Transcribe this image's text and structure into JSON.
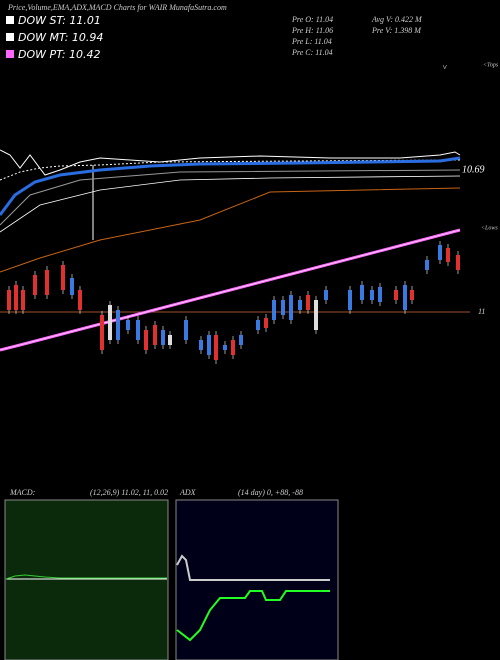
{
  "chart_data": {
    "type": "candlestick",
    "title": "Price,Volume,EMA,ADX,MACD Charts for WAIR MunafaSutra.com",
    "series": [
      {
        "name": "DOW ST: 11.01",
        "color": "#ffffff"
      },
      {
        "name": "DOW MT: 10.94",
        "color": "#ffffff"
      },
      {
        "name": "DOW PT: 10.42",
        "color": "#ff66ff"
      }
    ],
    "stats": [
      "Pre O: 11.04",
      "Pre H: 11.06",
      "Pre L: 11.04",
      "Pre C: 11.04",
      "Avg V: 0.422 M",
      "Pre V: 1.398 M"
    ],
    "annotations": [
      "<Tops",
      "10.69",
      "<Lows",
      "11"
    ],
    "macd": {
      "label": "MACD:",
      "params": "(12,26,9) 11.02, 11, 0.02"
    },
    "adx": {
      "label": "ADX",
      "params": "(14 day) 0, +88, -88"
    }
  }
}
